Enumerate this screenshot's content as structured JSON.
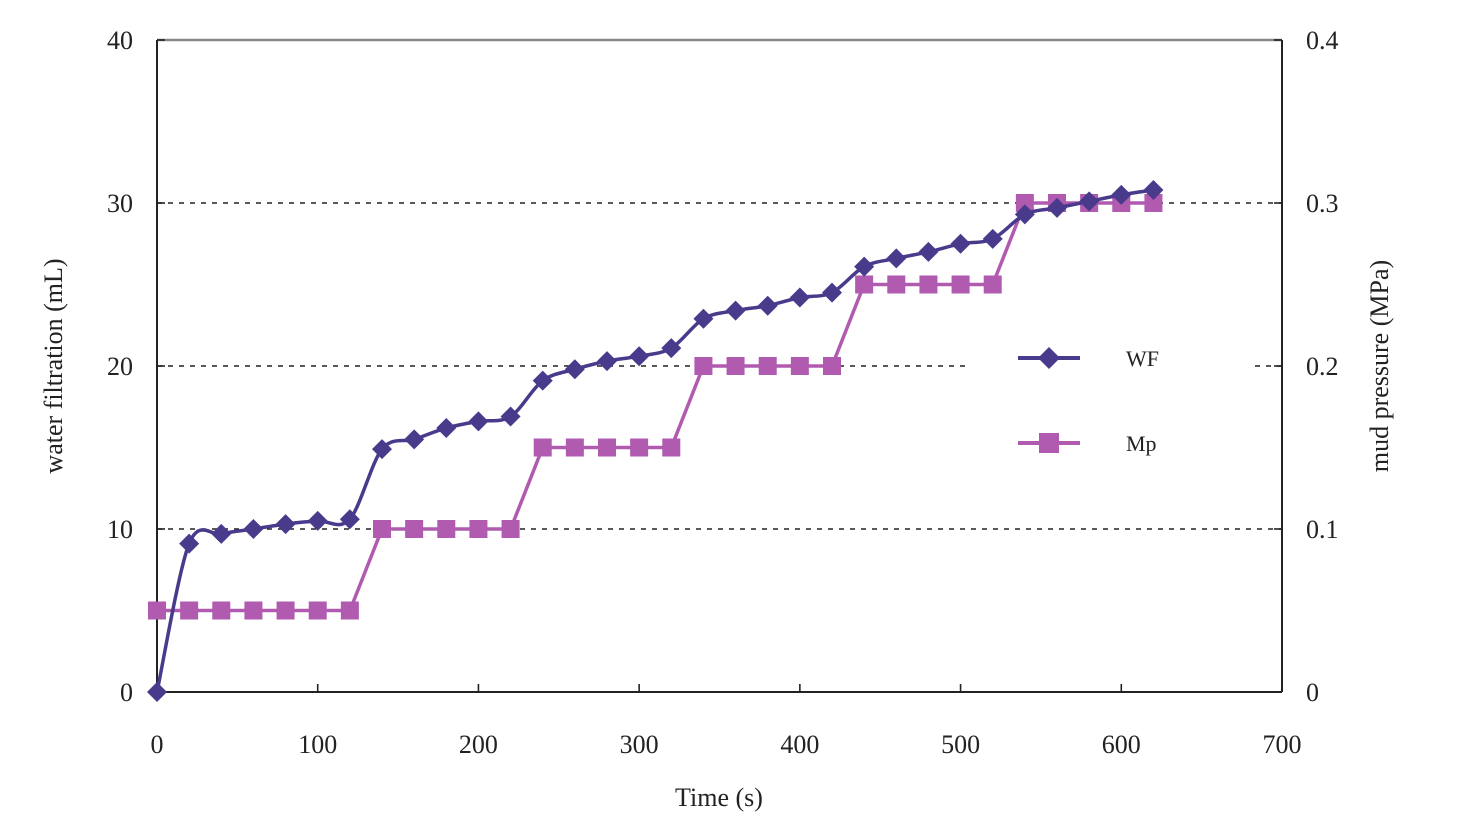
{
  "chart_data": {
    "type": "line",
    "xlabel": "Time (s)",
    "ylabel_left": "water filtration (mL)",
    "ylabel_right": "mud pressure (MPa)",
    "xlim": [
      0,
      700
    ],
    "ylim_left": [
      0,
      40
    ],
    "ylim_right": [
      0,
      0.4
    ],
    "x_ticks": [
      "0",
      "100",
      "200",
      "300",
      "400",
      "500",
      "600",
      "700"
    ],
    "y_ticks_left": [
      "0",
      "10",
      "20",
      "30",
      "40"
    ],
    "y_ticks_right": [
      "0",
      "0.1",
      "0.2",
      "0.3",
      "0.4"
    ],
    "grid": "horizontal dashed at 10, 20, 30",
    "legend_position": "right-middle",
    "series": [
      {
        "name": "WF",
        "axis": "left",
        "marker": "diamond",
        "color": "#4a3a8c",
        "x": [
          0,
          20,
          40,
          60,
          80,
          100,
          120,
          140,
          160,
          180,
          200,
          220,
          240,
          260,
          280,
          300,
          320,
          340,
          360,
          380,
          400,
          420,
          440,
          460,
          480,
          500,
          520,
          540,
          560,
          580,
          600,
          620
        ],
        "values": [
          0,
          9.1,
          9.7,
          10.0,
          10.3,
          10.5,
          10.6,
          14.9,
          15.5,
          16.2,
          16.6,
          16.9,
          19.1,
          19.8,
          20.3,
          20.6,
          21.1,
          22.9,
          23.4,
          23.7,
          24.2,
          24.5,
          26.1,
          26.6,
          27.0,
          27.5,
          27.8,
          29.3,
          29.7,
          30.1,
          30.5,
          30.8
        ]
      },
      {
        "name": "Mp",
        "axis": "right",
        "marker": "square",
        "color": "#b05ab0",
        "x": [
          0,
          20,
          40,
          60,
          80,
          100,
          120,
          140,
          160,
          180,
          200,
          220,
          240,
          260,
          280,
          300,
          320,
          340,
          360,
          380,
          400,
          420,
          440,
          460,
          480,
          500,
          520,
          540,
          560,
          580,
          600,
          620
        ],
        "values": [
          0.05,
          0.05,
          0.05,
          0.05,
          0.05,
          0.05,
          0.05,
          0.1,
          0.1,
          0.1,
          0.1,
          0.1,
          0.15,
          0.15,
          0.15,
          0.15,
          0.15,
          0.2,
          0.2,
          0.2,
          0.2,
          0.2,
          0.25,
          0.25,
          0.25,
          0.25,
          0.25,
          0.3,
          0.3,
          0.3,
          0.3,
          0.3
        ]
      }
    ]
  }
}
